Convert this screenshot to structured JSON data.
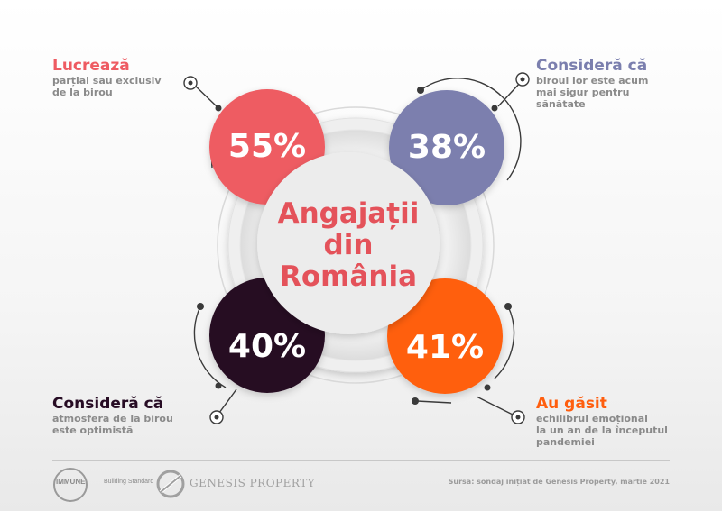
{
  "center_title": {
    "line1": "Angajații",
    "line2": "din",
    "line3": "România"
  },
  "stats": [
    {
      "id": "top-left",
      "value": "55%",
      "heading": "Lucrează",
      "lines": [
        "parțial sau exclusiv",
        "de la birou"
      ],
      "color": "#ee5b62"
    },
    {
      "id": "top-right",
      "value": "38%",
      "heading": "Consideră că",
      "lines": [
        "biroul lor este acum",
        "mai sigur pentru",
        "sănătate"
      ],
      "color": "#7b7fae"
    },
    {
      "id": "bottom-left",
      "value": "40%",
      "heading": "Consideră că",
      "lines": [
        "atmosfera de la birou",
        "este optimistă"
      ],
      "color": "#270c24"
    },
    {
      "id": "bottom-right",
      "value": "41%",
      "heading": "Au găsit",
      "lines": [
        "echilibrul emoțional",
        "la un an de la începutul",
        "pandemiei"
      ],
      "color": "#ff5e0e"
    }
  ],
  "footer": {
    "immune_logo_text": "IMMUNE",
    "immune_sub": "Building Standard",
    "genesis_logo_text": "GENESIS PROPERTY",
    "source": "Sursa: sondaj inițiat de Genesis Property, martie 2021"
  }
}
